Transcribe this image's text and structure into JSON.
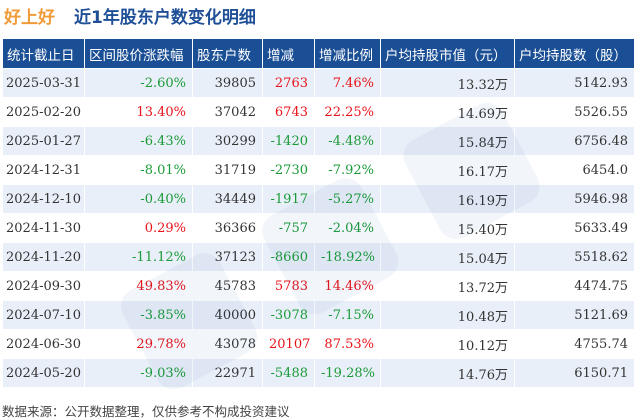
{
  "title": {
    "stock": "好上好",
    "subtitle": "近1年股东户数变化明细"
  },
  "columns": [
    "统计截止日",
    "区间股价涨跌幅",
    "股东户数",
    "增减",
    "增减比例",
    "户均持股市值（元）",
    "户均持股数（股）"
  ],
  "rows": [
    {
      "date": "2025-03-31",
      "price_change": "-2.60%",
      "holders": "39805",
      "change": "2763",
      "change_pct": "7.46%",
      "avg_value": "13.32万",
      "avg_shares": "5142.93"
    },
    {
      "date": "2025-02-20",
      "price_change": "13.40%",
      "holders": "37042",
      "change": "6743",
      "change_pct": "22.25%",
      "avg_value": "14.69万",
      "avg_shares": "5526.55"
    },
    {
      "date": "2025-01-27",
      "price_change": "-6.43%",
      "holders": "30299",
      "change": "-1420",
      "change_pct": "-4.48%",
      "avg_value": "15.84万",
      "avg_shares": "6756.48"
    },
    {
      "date": "2024-12-31",
      "price_change": "-8.01%",
      "holders": "31719",
      "change": "-2730",
      "change_pct": "-7.92%",
      "avg_value": "16.17万",
      "avg_shares": "6454.0"
    },
    {
      "date": "2024-12-10",
      "price_change": "-0.40%",
      "holders": "34449",
      "change": "-1917",
      "change_pct": "-5.27%",
      "avg_value": "16.19万",
      "avg_shares": "5946.98"
    },
    {
      "date": "2024-11-30",
      "price_change": "0.29%",
      "holders": "36366",
      "change": "-757",
      "change_pct": "-2.04%",
      "avg_value": "15.40万",
      "avg_shares": "5633.49"
    },
    {
      "date": "2024-11-20",
      "price_change": "-11.12%",
      "holders": "37123",
      "change": "-8660",
      "change_pct": "-18.92%",
      "avg_value": "15.04万",
      "avg_shares": "5518.62"
    },
    {
      "date": "2024-09-30",
      "price_change": "49.83%",
      "holders": "45783",
      "change": "5783",
      "change_pct": "14.46%",
      "avg_value": "13.72万",
      "avg_shares": "4474.75"
    },
    {
      "date": "2024-07-10",
      "price_change": "-3.85%",
      "holders": "40000",
      "change": "-3078",
      "change_pct": "-7.15%",
      "avg_value": "10.48万",
      "avg_shares": "5121.69"
    },
    {
      "date": "2024-06-30",
      "price_change": "29.78%",
      "holders": "43078",
      "change": "20107",
      "change_pct": "87.53%",
      "avg_value": "10.12万",
      "avg_shares": "4755.74"
    },
    {
      "date": "2024-05-20",
      "price_change": "-9.03%",
      "holders": "22971",
      "change": "-5488",
      "change_pct": "-19.28%",
      "avg_value": "14.76万",
      "avg_shares": "6150.71"
    }
  ],
  "source": "数据来源：公开数据整理，仅供参考不构成投资建议",
  "colors": {
    "header_bg": "#1a4e95",
    "stripe_bg": "#e9eff8",
    "up": "#e8131a",
    "down": "#1a9b38",
    "stock_title": "#f09a38",
    "subtitle": "#1f4f96"
  }
}
